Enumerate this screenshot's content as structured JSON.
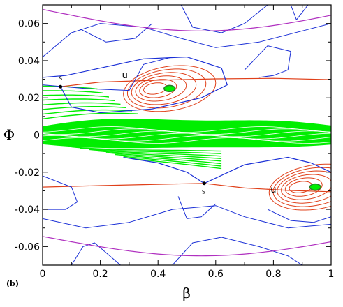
{
  "chart_data": {
    "type": "scatter",
    "panel_label": "(b)",
    "title": "",
    "xlabel": "β",
    "ylabel": "Φ",
    "xlim": [
      0,
      1
    ],
    "ylim": [
      -0.07,
      0.07
    ],
    "x_ticks": [
      0,
      0.2,
      0.4,
      0.6,
      0.8,
      1
    ],
    "x_tick_labels": [
      "0",
      "0.2",
      "0.4",
      "0.6",
      "0.8",
      "1"
    ],
    "y_ticks": [
      -0.06,
      -0.04,
      -0.02,
      0,
      0.02,
      0.04,
      0.06
    ],
    "y_tick_labels": [
      "-0.06",
      "-0.04",
      "-0.02",
      "0",
      "0.02",
      "0.04",
      "0.06"
    ],
    "grid": false,
    "legend": "none",
    "colors": {
      "chaotic_sea": "#00ee00",
      "separatrix": "#e0401a",
      "invariant_curves": "#1a2fd6",
      "outer_curve": "#b030c0",
      "island_core": "#2a7a2a"
    },
    "annotations": [
      {
        "text": "s",
        "x": 0.062,
        "y": 0.0295
      },
      {
        "text": "u",
        "x": 0.285,
        "y": 0.0305
      },
      {
        "text": "s",
        "x": 0.558,
        "y": -0.0315
      },
      {
        "text": "u",
        "x": 0.8,
        "y": -0.031
      }
    ],
    "islands": [
      {
        "name": "upper island",
        "center": [
          0.44,
          0.025
        ],
        "half_width": [
          0.16,
          0.012
        ]
      },
      {
        "name": "lower island",
        "center": [
          0.945,
          -0.028
        ],
        "half_width": [
          0.16,
          0.012
        ]
      }
    ],
    "hyperbolic_points": [
      [
        0.062,
        0.026
      ],
      [
        0.56,
        -0.026
      ]
    ],
    "series": [
      {
        "name": "",
        "role": "chaotic layer",
        "x": [
          0,
          0.2,
          0.4,
          0.6,
          0.8,
          1
        ],
        "y": [
          0.0,
          0.006,
          0.008,
          0.006,
          0.002,
          0.0
        ]
      },
      {
        "name": "",
        "role": "separatrix",
        "x": [
          0.062,
          0.3,
          0.6,
          0.99
        ],
        "y": [
          0.026,
          0.029,
          0.03,
          0.0295
        ]
      },
      {
        "name": "",
        "role": "separatrix",
        "x": [
          0.0,
          0.2,
          0.56,
          0.99
        ],
        "y": [
          -0.028,
          -0.027,
          -0.026,
          -0.0305
        ]
      }
    ]
  }
}
